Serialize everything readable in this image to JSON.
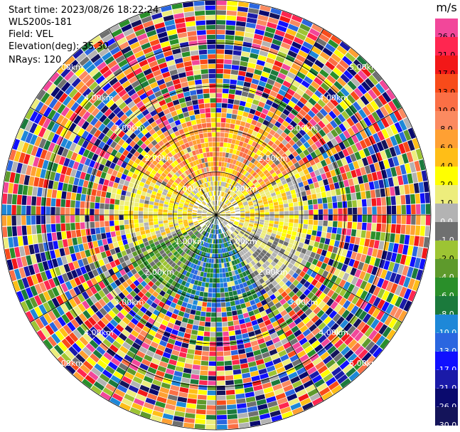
{
  "header": {
    "start_time": "Start time: 2023/08/26 18:22:24",
    "instrument": "WLS200s-181",
    "field": "Field: VEL",
    "elevation": "Elevation(deg): 35.30",
    "nrays": "NRays: 120"
  },
  "colorbar": {
    "unit": "m/s",
    "levels": [
      {
        "label": "26.0",
        "color": "#f2479a"
      },
      {
        "label": "21.0",
        "color": "#ff2650"
      },
      {
        "label": "17.0",
        "color": "#f21818"
      },
      {
        "label": "13.0",
        "color": "#f84b1a"
      },
      {
        "label": "10.0",
        "color": "#fb6f45"
      },
      {
        "label": "8.0",
        "color": "#fb8a60"
      },
      {
        "label": "6.0",
        "color": "#ffa033"
      },
      {
        "label": "4.0",
        "color": "#ffbe17"
      },
      {
        "label": "2.0",
        "color": "#ffff00"
      },
      {
        "label": "1.0",
        "color": "#eded7c"
      },
      {
        "label": "0.0",
        "color": "#b3b3b3"
      },
      {
        "label": "-1.0",
        "color": "#6f7070"
      },
      {
        "label": "-2.0",
        "color": "#9dc433"
      },
      {
        "label": "-4.0",
        "color": "#5e9a2c"
      },
      {
        "label": "-6.0",
        "color": "#2a8f2a"
      },
      {
        "label": "-8.0",
        "color": "#1b7a3c"
      },
      {
        "label": "-10.0",
        "color": "#1e88d8"
      },
      {
        "label": "-13.0",
        "color": "#2a66e0"
      },
      {
        "label": "-17.0",
        "color": "#1010ff"
      },
      {
        "label": "-21.0",
        "color": "#1a1aa8"
      },
      {
        "label": "-26.0",
        "color": "#0a0a6e"
      },
      {
        "label": "-30.0",
        "color": "#14145a"
      }
    ]
  },
  "chart_data": {
    "type": "polar-ppi",
    "nrays": 120,
    "range_labels": [
      "1.00km",
      "2.00km",
      "3.00km",
      "4.00km",
      "5.00km"
    ],
    "range_rings_km": [
      1,
      2,
      3,
      4,
      5
    ],
    "max_range_km": 5,
    "spokes_deg": [
      0,
      30,
      60,
      90,
      120,
      150,
      180,
      210,
      240,
      270,
      300,
      330
    ],
    "field": "VEL",
    "units": "m/s"
  }
}
